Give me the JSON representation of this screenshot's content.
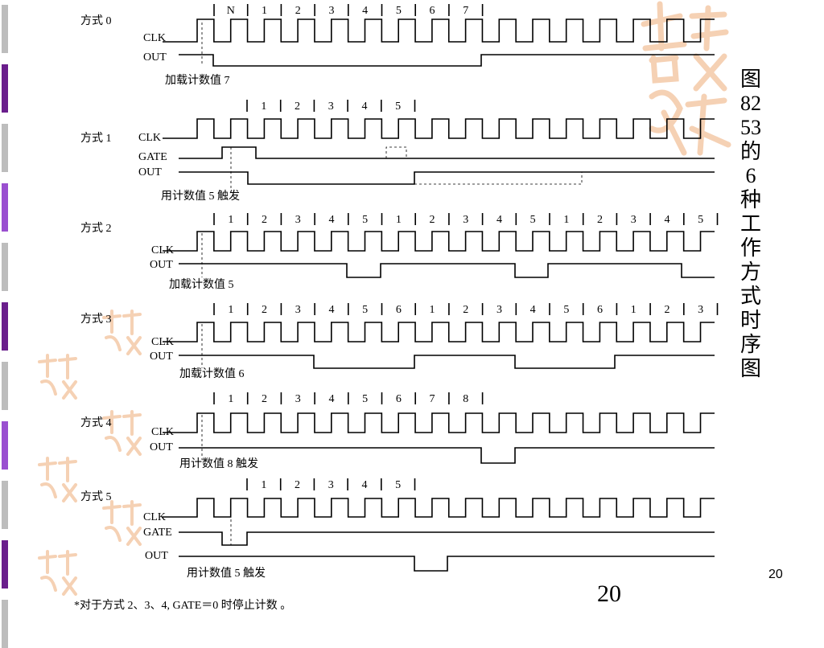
{
  "title_chars": [
    "图",
    "82",
    "53",
    "的",
    "6",
    "种",
    "工",
    "作",
    "方",
    "式",
    "时",
    "序",
    "图"
  ],
  "page_number": "20",
  "slide_number_big": "20",
  "footnote": "*对于方式 2、3、4, GATE＝0 时停止计数 。",
  "colors": {
    "filmstrip_light": "#bdbdbd",
    "filmstrip_purple": "#6a1e8c",
    "filmstrip_violet": "#9a4fd0",
    "stamp": "#f4c9a8"
  },
  "modes": [
    {
      "mode_label": "方式 0",
      "signals": [
        "CLK",
        "OUT"
      ],
      "count_labels": [
        "N",
        "1",
        "2",
        "3",
        "4",
        "5",
        "6",
        "7"
      ],
      "note": "加载计数值 7"
    },
    {
      "mode_label": "方式 1",
      "signals": [
        "CLK",
        "GATE",
        "OUT"
      ],
      "count_labels": [
        "1",
        "2",
        "3",
        "4",
        "5"
      ],
      "note": "用计数值 5 触发"
    },
    {
      "mode_label": "方式 2",
      "signals": [
        "CLK",
        "OUT"
      ],
      "count_labels": [
        "1",
        "2",
        "3",
        "4",
        "5",
        "1",
        "2",
        "3",
        "4",
        "5",
        "1",
        "2",
        "3",
        "4",
        "5"
      ],
      "note": "加载计数值 5"
    },
    {
      "mode_label": "方式 3",
      "signals": [
        "CLK",
        "OUT"
      ],
      "count_labels": [
        "1",
        "2",
        "3",
        "4",
        "5",
        "6",
        "1",
        "2",
        "3",
        "4",
        "5",
        "6",
        "1",
        "2",
        "3"
      ],
      "note": "加载计数值 6"
    },
    {
      "mode_label": "方式 4",
      "signals": [
        "CLK",
        "OUT"
      ],
      "count_labels": [
        "1",
        "2",
        "3",
        "4",
        "5",
        "6",
        "7",
        "8"
      ],
      "note": "用计数值 8 触发"
    },
    {
      "mode_label": "方式 5",
      "signals": [
        "CLK",
        "GATE",
        "OUT"
      ],
      "count_labels": [
        "1",
        "2",
        "3",
        "4",
        "5"
      ],
      "note": "用计数值 5 触发"
    }
  ]
}
